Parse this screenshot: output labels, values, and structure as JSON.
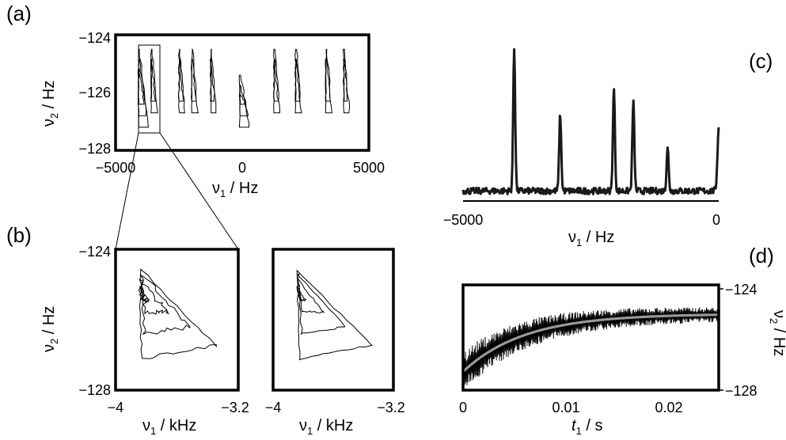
{
  "figure": {
    "panel_a": {
      "label": "(a)",
      "xlabel_main": "ν",
      "xlabel_sub": "1",
      "xlabel_unit": " / Hz",
      "ylabel_main": "ν",
      "ylabel_sub": "2",
      "ylabel_unit": " / Hz",
      "xticks": [
        "−5000",
        "0",
        "5000"
      ],
      "yticks": [
        "−124",
        "−126",
        "−128"
      ]
    },
    "panel_b": {
      "label": "(b)",
      "left_plot": {
        "xlabel_main": "ν",
        "xlabel_sub": "1",
        "xlabel_unit": " / kHz",
        "ylabel_main": "ν",
        "ylabel_sub": "2",
        "ylabel_unit": " / Hz",
        "xticks": [
          "−4",
          "−3.2"
        ],
        "yticks": [
          "−124",
          "−128"
        ]
      },
      "right_plot": {
        "xlabel_main": "ν",
        "xlabel_sub": "1",
        "xlabel_unit": " / kHz",
        "xticks": [
          "−4",
          "−3.2"
        ]
      }
    },
    "panel_c": {
      "label": "(c)",
      "xlabel_main": "ν",
      "xlabel_sub": "1",
      "xlabel_unit": " / Hz",
      "xticks": [
        "−5000",
        "0"
      ]
    },
    "panel_d": {
      "label": "(d)",
      "xlabel_main": "t",
      "xlabel_sub": "1",
      "xlabel_unit": " / s",
      "ylabel_main": "ν",
      "ylabel_sub": "2",
      "ylabel_unit": " / Hz",
      "xticks": [
        "0",
        "0.01",
        "0.02"
      ],
      "yticks": [
        "−124",
        "−128"
      ]
    }
  },
  "chart_data": [
    {
      "type": "heatmap",
      "panel": "(a)",
      "xlim": [
        -5000,
        5000
      ],
      "ylim": [
        -128,
        -124
      ],
      "peak_centers_nu1_hz": [
        -4000,
        -3500,
        -2400,
        -1900,
        -1150,
        0,
        1350,
        2200,
        3400,
        4100
      ]
    },
    {
      "type": "heatmap",
      "panel": "(b) left",
      "xlim": [
        -4,
        -3.2
      ],
      "ylim": [
        -128,
        -124
      ]
    },
    {
      "type": "heatmap",
      "panel": "(b) right",
      "xlim": [
        -4,
        -3.2
      ],
      "ylim": [
        -128,
        -124
      ]
    },
    {
      "type": "line",
      "panel": "(c)",
      "xlim": [
        -5000,
        0
      ],
      "peaks": [
        {
          "x": -4000,
          "height": 1.0
        },
        {
          "x": -3100,
          "height": 0.54
        },
        {
          "x": -2050,
          "height": 0.72
        },
        {
          "x": -1670,
          "height": 0.63
        },
        {
          "x": -1000,
          "height": 0.31
        },
        {
          "x": 0,
          "height": 0.44
        }
      ],
      "baseline": 0.05
    },
    {
      "type": "line",
      "panel": "(d)",
      "xlim": [
        0,
        0.025
      ],
      "ylim": [
        -128,
        -124
      ],
      "fit": {
        "start": -127.3,
        "plateau": -125.1,
        "tau": 0.006
      },
      "colors": {
        "data": "#000000",
        "fit": "#999999"
      }
    }
  ]
}
